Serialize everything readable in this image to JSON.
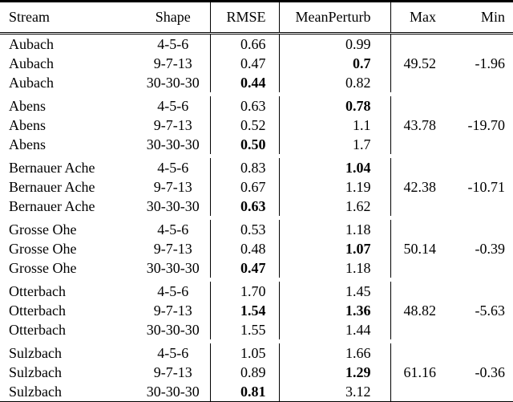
{
  "page": {
    "background_color": "#ffffff",
    "text_color": "#000000",
    "rule_color": "#000000"
  },
  "table": {
    "columns": [
      "Stream",
      "Shape",
      "RMSE",
      "MeanPerturb",
      "Max",
      "Min"
    ],
    "groups": [
      {
        "stream": "Aubach",
        "rows": [
          {
            "shape": "4-5-6",
            "rmse": "0.66",
            "rmse_bold": false,
            "mp": "0.99",
            "mp_bold": false
          },
          {
            "shape": "9-7-13",
            "rmse": "0.47",
            "rmse_bold": false,
            "mp": "0.7",
            "mp_bold": true
          },
          {
            "shape": "30-30-30",
            "rmse": "0.44",
            "rmse_bold": true,
            "mp": "0.82",
            "mp_bold": false
          }
        ],
        "max": "49.52",
        "min": "-1.96"
      },
      {
        "stream": "Abens",
        "rows": [
          {
            "shape": "4-5-6",
            "rmse": "0.63",
            "rmse_bold": false,
            "mp": "0.78",
            "mp_bold": true
          },
          {
            "shape": "9-7-13",
            "rmse": "0.52",
            "rmse_bold": false,
            "mp": "1.1",
            "mp_bold": false
          },
          {
            "shape": "30-30-30",
            "rmse": "0.50",
            "rmse_bold": true,
            "mp": "1.7",
            "mp_bold": false
          }
        ],
        "max": "43.78",
        "min": "-19.70"
      },
      {
        "stream": "Bernauer Ache",
        "rows": [
          {
            "shape": "4-5-6",
            "rmse": "0.83",
            "rmse_bold": false,
            "mp": "1.04",
            "mp_bold": true
          },
          {
            "shape": "9-7-13",
            "rmse": "0.67",
            "rmse_bold": false,
            "mp": "1.19",
            "mp_bold": false
          },
          {
            "shape": "30-30-30",
            "rmse": "0.63",
            "rmse_bold": true,
            "mp": "1.62",
            "mp_bold": false
          }
        ],
        "max": "42.38",
        "min": "-10.71"
      },
      {
        "stream": "Grosse Ohe",
        "rows": [
          {
            "shape": "4-5-6",
            "rmse": "0.53",
            "rmse_bold": false,
            "mp": "1.18",
            "mp_bold": false
          },
          {
            "shape": "9-7-13",
            "rmse": "0.48",
            "rmse_bold": false,
            "mp": "1.07",
            "mp_bold": true
          },
          {
            "shape": "30-30-30",
            "rmse": "0.47",
            "rmse_bold": true,
            "mp": "1.18",
            "mp_bold": false
          }
        ],
        "max": "50.14",
        "min": "-0.39"
      },
      {
        "stream": "Otterbach",
        "rows": [
          {
            "shape": "4-5-6",
            "rmse": "1.70",
            "rmse_bold": false,
            "mp": "1.45",
            "mp_bold": false
          },
          {
            "shape": "9-7-13",
            "rmse": "1.54",
            "rmse_bold": true,
            "mp": "1.36",
            "mp_bold": true
          },
          {
            "shape": "30-30-30",
            "rmse": "1.55",
            "rmse_bold": false,
            "mp": "1.44",
            "mp_bold": false
          }
        ],
        "max": "48.82",
        "min": "-5.63"
      },
      {
        "stream": "Sulzbach",
        "rows": [
          {
            "shape": "4-5-6",
            "rmse": "1.05",
            "rmse_bold": false,
            "mp": "1.66",
            "mp_bold": false
          },
          {
            "shape": "9-7-13",
            "rmse": "0.89",
            "rmse_bold": false,
            "mp": "1.29",
            "mp_bold": true
          },
          {
            "shape": "30-30-30",
            "rmse": "0.81",
            "rmse_bold": true,
            "mp": "3.12",
            "mp_bold": false
          }
        ],
        "max": "61.16",
        "min": "-0.36"
      }
    ]
  }
}
